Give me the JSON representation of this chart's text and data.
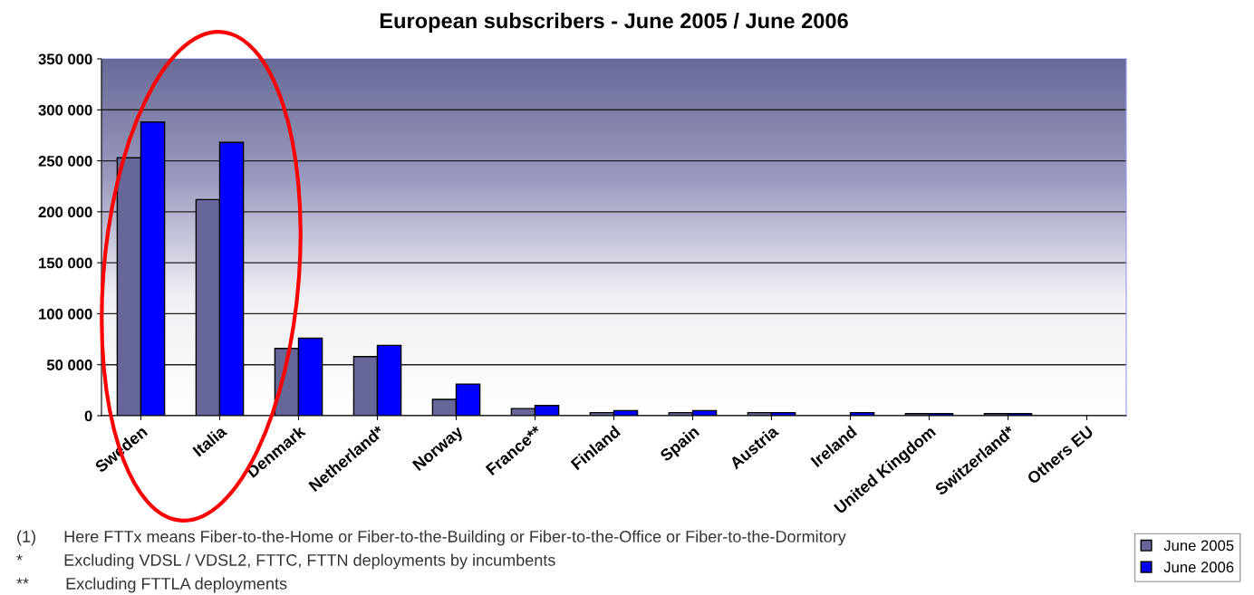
{
  "chart_data": {
    "type": "bar",
    "title": "European subscribers - June 2005 / June 2006",
    "categories": [
      "Sweden",
      "Italia",
      "Denmark",
      "Netherland*",
      "Norway",
      "France**",
      "Finland",
      "Spain",
      "Austria",
      "Ireland",
      "United Kingdom",
      "Switzerland*",
      "Others EU"
    ],
    "series": [
      {
        "name": "June 2005",
        "color": "#666699",
        "values": [
          253000,
          212000,
          66000,
          58000,
          16000,
          7000,
          3000,
          3000,
          3000,
          null,
          2000,
          2000,
          null
        ]
      },
      {
        "name": "June 2006",
        "color": "#0000ff",
        "values": [
          288000,
          268000,
          76000,
          69000,
          31000,
          10000,
          5000,
          5000,
          3000,
          3000,
          2000,
          2000,
          null
        ]
      }
    ],
    "ylim": [
      0,
      350000
    ],
    "yticks": [
      0,
      {
        "value": 50000,
        "label": "50 000"
      },
      {
        "value": 100000,
        "label": "100 000"
      },
      {
        "value": 150000,
        "label": "150 000"
      },
      {
        "value": 200000,
        "label": "200 000"
      },
      {
        "value": 250000,
        "label": "250 000"
      },
      {
        "value": 300000,
        "label": "300 000"
      },
      {
        "value": 350000,
        "label": "350 000"
      }
    ],
    "grid": "y",
    "legend": "bottom right",
    "annotations": [
      "(1)      Here FTTx means Fiber-to-the-Home or Fiber-to-the-Building or Fiber-to-the-Office or Fiber-to-the-Dormitory",
      "*         Excluding VDSL / VDSL2, FTTC, FTTN deployments by incumbents",
      "**        Excluding FTTLA deployments"
    ]
  }
}
